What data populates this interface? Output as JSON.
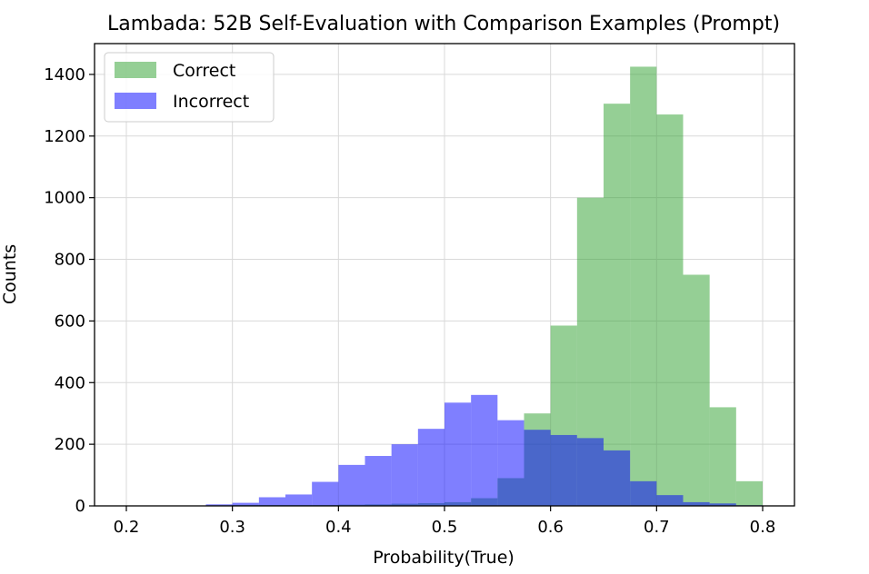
{
  "chart_data": {
    "type": "histogram",
    "title": "Lambada: 52B Self-Evaluation with Comparison Examples (Prompt)",
    "xlabel": "Probability(True)",
    "ylabel": "Counts",
    "xlim": [
      0.17,
      0.83
    ],
    "ylim": [
      0,
      1500
    ],
    "xticks": [
      0.2,
      0.3,
      0.4,
      0.5,
      0.6,
      0.7,
      0.8
    ],
    "xtick_labels": [
      "0.2",
      "0.3",
      "0.4",
      "0.5",
      "0.6",
      "0.7",
      "0.8"
    ],
    "yticks": [
      0,
      200,
      400,
      600,
      800,
      1000,
      1200,
      1400
    ],
    "ytick_labels": [
      "0",
      "200",
      "400",
      "600",
      "800",
      "1000",
      "1200",
      "1400"
    ],
    "grid": true,
    "legend_position": "top-left",
    "bin_edges": [
      0.2,
      0.225,
      0.25,
      0.275,
      0.3,
      0.325,
      0.35,
      0.375,
      0.4,
      0.425,
      0.45,
      0.475,
      0.5,
      0.525,
      0.55,
      0.575,
      0.6,
      0.625,
      0.65,
      0.675,
      0.7,
      0.725,
      0.75,
      0.775,
      0.8
    ],
    "series": [
      {
        "name": "Correct",
        "color": "#2ca02c",
        "opacity": 0.5,
        "values": [
          0,
          0,
          0,
          2,
          3,
          3,
          3,
          3,
          4,
          5,
          7,
          9,
          12,
          25,
          90,
          300,
          585,
          1000,
          1305,
          1425,
          1270,
          750,
          320,
          80
        ]
      },
      {
        "name": "Incorrect",
        "color": "#0000ff",
        "opacity": 0.5,
        "values": [
          0,
          0,
          0,
          5,
          10,
          28,
          37,
          78,
          133,
          162,
          200,
          250,
          335,
          360,
          278,
          247,
          230,
          220,
          180,
          80,
          35,
          12,
          8,
          2
        ]
      }
    ]
  }
}
